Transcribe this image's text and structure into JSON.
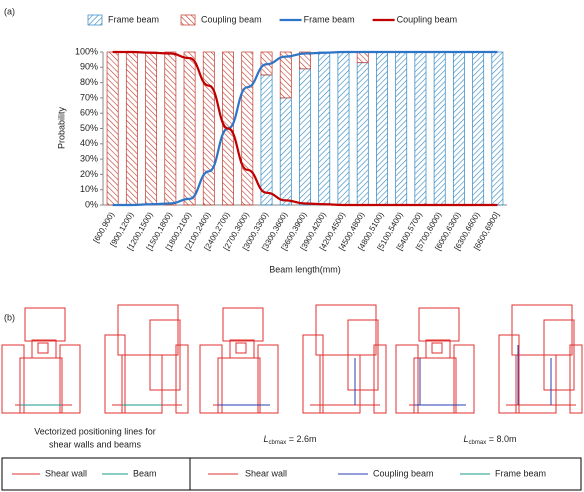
{
  "chart_data": {
    "type": "bar",
    "panel_label": "(a)",
    "x_label": "Beam length(mm)",
    "y_label": "Probability",
    "categories": [
      "[600,900)",
      "[900,1200)",
      "[1200,1500)",
      "[1500,1800)",
      "[1800,2100)",
      "[2100,2400)",
      "[2400,2700)",
      "[2700,3000)",
      "[3000,3300)",
      "[3300,3600)",
      "[3600,3900)",
      "[3900,4200)",
      "[4200,4500)",
      "[4500,4800)",
      "[4800,5100)",
      "[5100,5400)",
      "[5400,5700)",
      "[5700,6000)",
      "[6000,6300)",
      "[6300,6600)",
      "[6600,6900]"
    ],
    "series": [
      {
        "name": "Frame beam",
        "type": "bar",
        "color": "#2e86c1",
        "values": [
          0,
          0,
          0,
          0,
          0,
          0,
          0,
          0,
          85,
          70,
          89,
          100,
          100,
          93,
          100,
          100,
          100,
          100,
          100,
          100,
          100
        ]
      },
      {
        "name": "Coupling beam",
        "type": "bar",
        "color": "#c0392b",
        "values": [
          100,
          100,
          100,
          100,
          100,
          100,
          100,
          100,
          15,
          30,
          11,
          0,
          0,
          7,
          0,
          0,
          0,
          0,
          0,
          0,
          0
        ]
      },
      {
        "name": "Frame beam",
        "type": "line",
        "color": "#2e75c8",
        "values": [
          0,
          0,
          0.5,
          1,
          4,
          22,
          50,
          77,
          92,
          97,
          99,
          99.5,
          100,
          100,
          100,
          100,
          100,
          100,
          100,
          100,
          100
        ]
      },
      {
        "name": "Coupling beam",
        "type": "line",
        "color": "#c00000",
        "values": [
          100,
          100,
          99.5,
          99,
          96,
          78,
          50,
          23,
          8,
          3,
          1,
          0.5,
          0,
          0,
          0,
          0,
          0,
          0,
          0,
          0,
          0
        ]
      }
    ],
    "ylim": [
      0,
      100
    ],
    "yticks": [
      {
        "value": 0,
        "label": "0%"
      },
      {
        "value": 10,
        "label": "10%"
      },
      {
        "value": 20,
        "label": "20%"
      },
      {
        "value": 30,
        "label": "30%"
      },
      {
        "value": 40,
        "label": "40%"
      },
      {
        "value": 50,
        "label": "50%"
      },
      {
        "value": 60,
        "label": "60%"
      },
      {
        "value": 70,
        "label": "70%"
      },
      {
        "value": 80,
        "label": "80%"
      },
      {
        "value": 90,
        "label": "90%"
      },
      {
        "value": 100,
        "label": "100%"
      }
    ],
    "legend": "top"
  },
  "panel_b": {
    "label": "(b)",
    "caption_1": [
      "Vectorized positioning lines for",
      "shear walls and beams"
    ],
    "caption_2": {
      "symbol": "L",
      "subscript": "cbmax",
      "text": " = 2.6m"
    },
    "caption_3": {
      "symbol": "L",
      "subscript": "cbmax",
      "text": " = 8.0m"
    },
    "legend_left": [
      "Shear wall",
      "Beam"
    ],
    "legend_right": [
      "Shear wall",
      "Coupling beam",
      "Frame beam"
    ]
  }
}
